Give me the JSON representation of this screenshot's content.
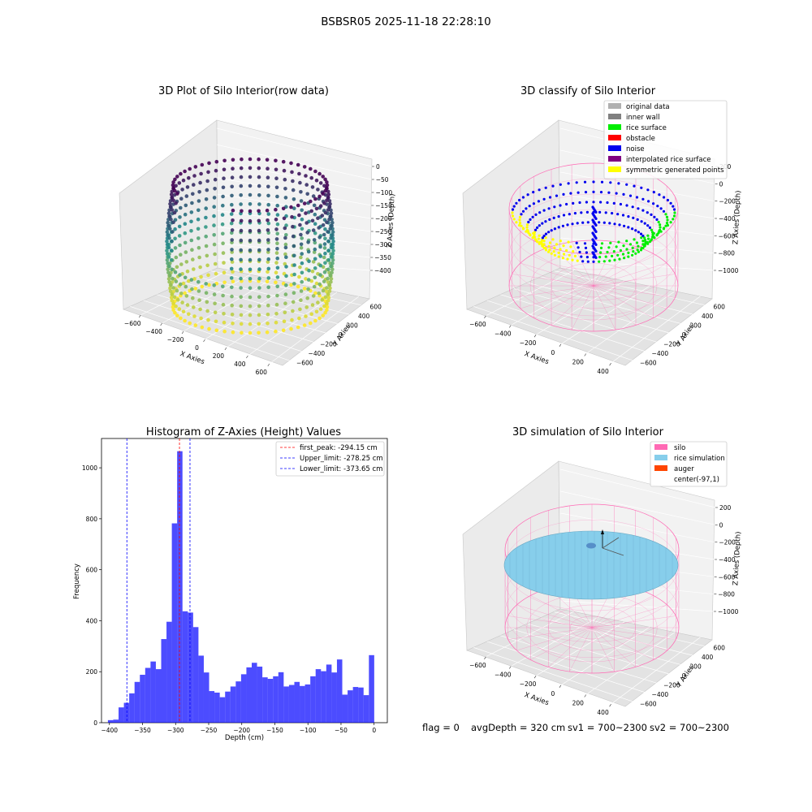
{
  "figure": {
    "suptitle": "BSBSR05 2025-11-18 22:28:10",
    "footer": {
      "flag": "flag = 0",
      "avg_depth": "avgDepth = 320 cm",
      "sv1": "sv1 = 700~2300",
      "sv2": "sv2 = 700~2300"
    }
  },
  "chart_data": [
    {
      "type": "scatter",
      "projection": "3d",
      "title": "3D Plot of Silo Interior(row data)",
      "xlabel": "X Axies",
      "ylabel": "Y Axies",
      "zlabel": "Z Axies (Depth)",
      "x_ticks": [
        "−600",
        "−400",
        "−200",
        "0",
        "200",
        "400",
        "600"
      ],
      "y_ticks": [
        "−600",
        "−400",
        "−200",
        "0",
        "200",
        "400",
        "600"
      ],
      "z_ticks": [
        "0",
        "−50",
        "−100",
        "−150",
        "−200",
        "−250",
        "−300",
        "−350",
        "−400"
      ],
      "colormap": "viridis",
      "colors": {
        "low": "#440154",
        "mid": "#21918c",
        "high": "#fde725"
      }
    },
    {
      "type": "scatter",
      "projection": "3d",
      "title": "3D classify of Silo Interior",
      "xlabel": "X Axies",
      "ylabel": "Y Axies",
      "zlabel": "Z Axies (Depth)",
      "x_ticks": [
        "−600",
        "−400",
        "−200",
        "0",
        "200",
        "400"
      ],
      "y_ticks": [
        "−600",
        "−400",
        "−200",
        "0",
        "200",
        "400",
        "600"
      ],
      "z_ticks": [
        "200",
        "0",
        "−200",
        "−400",
        "−600",
        "−800",
        "−1000"
      ],
      "legend_position": "top-right",
      "legend": [
        {
          "label": "original data",
          "color": "#b0b0b0"
        },
        {
          "label": "inner wall",
          "color": "#808080"
        },
        {
          "label": "rice surface",
          "color": "#00ee00"
        },
        {
          "label": "obstacle",
          "color": "#ff0000"
        },
        {
          "label": "noise",
          "color": "#0000ee"
        },
        {
          "label": "interpolated rice surface",
          "color": "#800080"
        },
        {
          "label": "symmetric generated points",
          "color": "#ffff00"
        }
      ]
    },
    {
      "type": "bar",
      "title": "Histogram of Z-Axies (Height) Values",
      "xlabel": "Depth (cm)",
      "ylabel": "Frequency",
      "xlim": [
        -412,
        20
      ],
      "ylim": [
        0,
        1115
      ],
      "x_ticks": [
        -400,
        -350,
        -300,
        -250,
        -200,
        -150,
        -100,
        -50,
        0
      ],
      "x_tick_labels": [
        "−400",
        "−350",
        "−300",
        "−250",
        "−200",
        "−150",
        "−100",
        "−50",
        "0"
      ],
      "y_ticks": [
        0,
        200,
        400,
        600,
        800,
        1000
      ],
      "bar_color": "#0000ff",
      "bin_start": -402.3,
      "bin_width": 8.05,
      "counts": [
        10,
        12,
        60,
        78,
        115,
        160,
        188,
        215,
        240,
        210,
        328,
        396,
        782,
        1065,
        437,
        432,
        375,
        263,
        197,
        124,
        118,
        100,
        122,
        142,
        162,
        190,
        217,
        235,
        220,
        178,
        172,
        182,
        198,
        142,
        148,
        160,
        144,
        150,
        182,
        210,
        202,
        228,
        197,
        248,
        110,
        127,
        140,
        138,
        108,
        265
      ],
      "vlines": [
        {
          "label": "first_peak: -294.15 cm",
          "x": -294.15,
          "color": "#ff0000"
        },
        {
          "label": "Upper_limit: -278.25 cm",
          "x": -278.25,
          "color": "#0000ff"
        },
        {
          "label": "Lower_limit: -373.65 cm",
          "x": -373.65,
          "color": "#0000ff"
        }
      ],
      "legend_position": "top-right"
    },
    {
      "type": "scatter",
      "projection": "3d",
      "title": "3D simulation of Silo Interior",
      "xlabel": "X Axies",
      "ylabel": "Y Axies",
      "zlabel": "Z Axies (Depth)",
      "x_ticks": [
        "−600",
        "−400",
        "−200",
        "0",
        "200",
        "400"
      ],
      "y_ticks": [
        "−600",
        "−400",
        "−200",
        "0",
        "200",
        "400",
        "600"
      ],
      "z_ticks": [
        "200",
        "0",
        "−200",
        "−400",
        "−600",
        "−800",
        "−1000"
      ],
      "legend_position": "top-right",
      "legend": [
        {
          "label": "silo",
          "color": "#ff69b4"
        },
        {
          "label": "rice simulation",
          "color": "#87ceeb"
        },
        {
          "label": "auger",
          "color": "#ff4500"
        },
        {
          "label": "center(-97,1)",
          "color": ""
        }
      ]
    }
  ]
}
